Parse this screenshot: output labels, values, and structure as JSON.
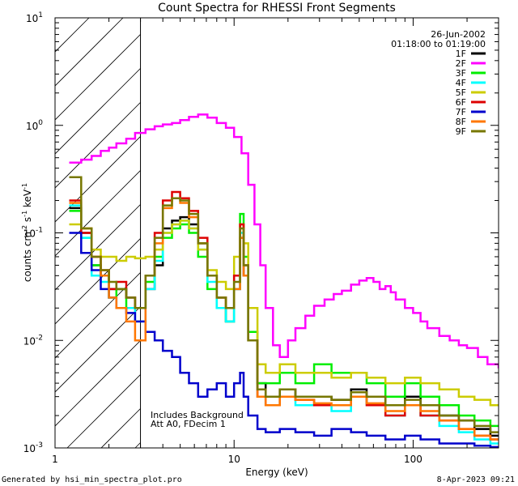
{
  "chart_data": {
    "type": "line",
    "title": "Count Spectra for RHESSI Front Segments",
    "xlabel": "Energy (keV)",
    "ylabel": "counts cm-2 s-1 keV-1",
    "xscale": "log",
    "yscale": "log",
    "xlim": [
      1,
      300
    ],
    "ylim": [
      0.001,
      10
    ],
    "x_tick_labels": [
      {
        "value": 1,
        "label": "1"
      },
      {
        "value": 10,
        "label": "10"
      },
      {
        "value": 100,
        "label": "100"
      }
    ],
    "y_tick_labels": [
      {
        "value": 0.001,
        "base": "10",
        "exp": "-3"
      },
      {
        "value": 0.01,
        "base": "10",
        "exp": "-2"
      },
      {
        "value": 0.1,
        "base": "10",
        "exp": "-1"
      },
      {
        "value": 1,
        "base": "10",
        "exp": "0"
      },
      {
        "value": 10,
        "base": "10",
        "exp": "1"
      }
    ],
    "shaded_region": {
      "from": 1,
      "to": 3
    },
    "date": "26-Jun-2002",
    "time_range": "01:18:00 to 01:19:00",
    "annotations": [
      "Includes Background",
      "Att A0, FDecim 1"
    ],
    "legend_position": "top-right",
    "series": [
      {
        "name": "1F",
        "color": "#000000",
        "x": [
          1.2,
          1.4,
          1.6,
          1.8,
          2.0,
          2.2,
          2.5,
          2.8,
          3.2,
          3.6,
          4.0,
          4.5,
          5.0,
          5.6,
          6.3,
          7.1,
          8.0,
          9.0,
          10.0,
          10.8,
          11.3,
          12.0,
          13.5,
          15,
          18,
          22,
          28,
          35,
          45,
          55,
          70,
          90,
          110,
          140,
          180,
          220,
          270
        ],
        "y": [
          0.17,
          0.1,
          0.05,
          0.04,
          0.03,
          0.03,
          0.025,
          0.02,
          0.03,
          0.05,
          0.11,
          0.13,
          0.14,
          0.12,
          0.08,
          0.04,
          0.025,
          0.015,
          0.03,
          0.09,
          0.04,
          0.01,
          0.004,
          0.003,
          0.0035,
          0.003,
          0.003,
          0.0028,
          0.0035,
          0.003,
          0.0025,
          0.003,
          0.0025,
          0.002,
          0.0018,
          0.0015,
          0.0013
        ]
      },
      {
        "name": "2F",
        "color": "#ff00ff",
        "x": [
          1.2,
          1.4,
          1.6,
          1.8,
          2.0,
          2.2,
          2.5,
          2.8,
          3.2,
          3.6,
          4.0,
          4.5,
          5.0,
          5.6,
          6.3,
          7.1,
          8.0,
          9.0,
          10.0,
          11.0,
          12.0,
          13.0,
          14.0,
          15.0,
          16.5,
          18,
          20,
          22,
          25,
          28,
          32,
          36,
          40,
          45,
          50,
          55,
          60,
          65,
          70,
          75,
          80,
          90,
          100,
          110,
          120,
          140,
          160,
          180,
          200,
          230,
          260,
          300
        ],
        "y": [
          0.45,
          0.48,
          0.52,
          0.58,
          0.62,
          0.68,
          0.75,
          0.85,
          0.92,
          0.98,
          1.02,
          1.05,
          1.12,
          1.2,
          1.26,
          1.18,
          1.05,
          0.95,
          0.78,
          0.55,
          0.28,
          0.12,
          0.05,
          0.02,
          0.009,
          0.007,
          0.01,
          0.013,
          0.017,
          0.021,
          0.024,
          0.027,
          0.029,
          0.033,
          0.036,
          0.038,
          0.035,
          0.03,
          0.032,
          0.028,
          0.024,
          0.02,
          0.018,
          0.015,
          0.013,
          0.011,
          0.01,
          0.009,
          0.0085,
          0.007,
          0.006,
          0.0055
        ]
      },
      {
        "name": "3F",
        "color": "#00ee00",
        "x": [
          1.2,
          1.4,
          1.6,
          1.8,
          2.0,
          2.2,
          2.5,
          2.8,
          3.2,
          3.6,
          4.0,
          4.5,
          5.0,
          5.6,
          6.3,
          7.1,
          8.0,
          9.0,
          10.0,
          10.8,
          11.3,
          12.0,
          13.5,
          15,
          18,
          22,
          28,
          35,
          45,
          55,
          70,
          90,
          110,
          140,
          180,
          220,
          270
        ],
        "y": [
          0.16,
          0.09,
          0.05,
          0.04,
          0.025,
          0.03,
          0.02,
          0.02,
          0.035,
          0.06,
          0.09,
          0.11,
          0.12,
          0.1,
          0.06,
          0.03,
          0.02,
          0.015,
          0.04,
          0.15,
          0.06,
          0.012,
          0.004,
          0.004,
          0.005,
          0.004,
          0.006,
          0.005,
          0.005,
          0.004,
          0.003,
          0.004,
          0.003,
          0.0025,
          0.002,
          0.0018,
          0.0016
        ]
      },
      {
        "name": "4F",
        "color": "#00ffff",
        "x": [
          1.2,
          1.4,
          1.6,
          1.8,
          2.0,
          2.2,
          2.5,
          2.8,
          3.2,
          3.6,
          4.0,
          4.5,
          5.0,
          5.6,
          6.3,
          7.1,
          8.0,
          9.0,
          10.0,
          10.8,
          11.3,
          12.0,
          13.5,
          15,
          18,
          22,
          28,
          35,
          45,
          55,
          70,
          90,
          110,
          140,
          180,
          220,
          270
        ],
        "y": [
          0.18,
          0.09,
          0.04,
          0.035,
          0.025,
          0.02,
          0.02,
          0.015,
          0.03,
          0.055,
          0.1,
          0.12,
          0.13,
          0.11,
          0.07,
          0.035,
          0.02,
          0.015,
          0.03,
          0.1,
          0.05,
          0.01,
          0.003,
          0.0025,
          0.003,
          0.0025,
          0.0025,
          0.0022,
          0.003,
          0.0025,
          0.002,
          0.0025,
          0.002,
          0.0016,
          0.0014,
          0.0012,
          0.0011
        ]
      },
      {
        "name": "5F",
        "color": "#cccc00",
        "x": [
          1.2,
          1.4,
          1.6,
          1.8,
          2.0,
          2.2,
          2.5,
          2.8,
          3.2,
          3.6,
          4.0,
          4.5,
          5.0,
          5.6,
          6.3,
          7.1,
          8.0,
          9.0,
          10.0,
          10.8,
          11.3,
          12.0,
          13.5,
          15,
          18,
          22,
          28,
          35,
          45,
          55,
          70,
          90,
          110,
          140,
          180,
          220,
          270
        ],
        "y": [
          0.12,
          0.11,
          0.07,
          0.06,
          0.06,
          0.055,
          0.06,
          0.058,
          0.06,
          0.07,
          0.1,
          0.12,
          0.13,
          0.11,
          0.07,
          0.045,
          0.035,
          0.03,
          0.06,
          0.12,
          0.08,
          0.02,
          0.006,
          0.005,
          0.006,
          0.005,
          0.005,
          0.0045,
          0.005,
          0.0045,
          0.004,
          0.0045,
          0.004,
          0.0035,
          0.003,
          0.0028,
          0.0025
        ]
      },
      {
        "name": "6F",
        "color": "#dd0000",
        "x": [
          1.2,
          1.4,
          1.6,
          1.8,
          2.0,
          2.2,
          2.5,
          2.8,
          3.2,
          3.6,
          4.0,
          4.5,
          5.0,
          5.6,
          6.3,
          7.1,
          8.0,
          9.0,
          10.0,
          10.8,
          11.3,
          12.0,
          13.5,
          15,
          18,
          22,
          28,
          35,
          45,
          55,
          70,
          90,
          110,
          140,
          180,
          220,
          270
        ],
        "y": [
          0.2,
          0.1,
          0.06,
          0.045,
          0.03,
          0.035,
          0.025,
          0.02,
          0.04,
          0.1,
          0.2,
          0.24,
          0.21,
          0.16,
          0.09,
          0.04,
          0.025,
          0.02,
          0.04,
          0.12,
          0.05,
          0.01,
          0.003,
          0.0025,
          0.003,
          0.0028,
          0.0025,
          0.0025,
          0.003,
          0.0025,
          0.002,
          0.0025,
          0.002,
          0.0018,
          0.0015,
          0.0013,
          0.0012
        ]
      },
      {
        "name": "7F",
        "color": "#0000cc",
        "x": [
          1.2,
          1.4,
          1.6,
          1.8,
          2.0,
          2.2,
          2.5,
          2.8,
          3.2,
          3.6,
          4.0,
          4.5,
          5.0,
          5.6,
          6.3,
          7.1,
          8.0,
          9.0,
          10.0,
          10.8,
          11.3,
          12.0,
          13.5,
          15,
          18,
          22,
          28,
          35,
          45,
          55,
          70,
          90,
          110,
          140,
          180,
          220,
          270
        ],
        "y": [
          0.1,
          0.065,
          0.045,
          0.03,
          0.025,
          0.02,
          0.018,
          0.015,
          0.012,
          0.01,
          0.008,
          0.007,
          0.005,
          0.004,
          0.003,
          0.0035,
          0.004,
          0.003,
          0.004,
          0.005,
          0.003,
          0.002,
          0.0015,
          0.0014,
          0.0015,
          0.0014,
          0.0013,
          0.0015,
          0.0014,
          0.0013,
          0.0012,
          0.0013,
          0.0012,
          0.0011,
          0.0011,
          0.00105,
          0.00102
        ]
      },
      {
        "name": "8F",
        "color": "#ff7700",
        "x": [
          1.2,
          1.4,
          1.6,
          1.8,
          2.0,
          2.2,
          2.5,
          2.8,
          3.2,
          3.6,
          4.0,
          4.5,
          5.0,
          5.6,
          6.3,
          7.1,
          8.0,
          9.0,
          10.0,
          10.8,
          11.3,
          12.0,
          13.5,
          15,
          18,
          22,
          28,
          35,
          45,
          55,
          70,
          90,
          110,
          140,
          180,
          220,
          270
        ],
        "y": [
          0.19,
          0.11,
          0.06,
          0.04,
          0.025,
          0.02,
          0.015,
          0.01,
          0.04,
          0.08,
          0.17,
          0.21,
          0.19,
          0.14,
          0.08,
          0.04,
          0.025,
          0.02,
          0.03,
          0.09,
          0.04,
          0.01,
          0.003,
          0.0025,
          0.003,
          0.0028,
          0.0026,
          0.0025,
          0.003,
          0.0026,
          0.0022,
          0.0025,
          0.0022,
          0.0018,
          0.0015,
          0.0013,
          0.0012
        ]
      },
      {
        "name": "9F",
        "color": "#777700",
        "x": [
          1.2,
          1.4,
          1.6,
          1.8,
          2.0,
          2.2,
          2.5,
          2.8,
          3.2,
          3.6,
          4.0,
          4.5,
          5.0,
          5.6,
          6.3,
          7.1,
          8.0,
          9.0,
          10.0,
          10.8,
          11.3,
          12.0,
          13.5,
          15,
          18,
          22,
          28,
          35,
          45,
          55,
          70,
          90,
          110,
          140,
          180,
          220,
          270
        ],
        "y": [
          0.33,
          0.11,
          0.06,
          0.045,
          0.035,
          0.03,
          0.025,
          0.02,
          0.04,
          0.09,
          0.18,
          0.21,
          0.2,
          0.15,
          0.08,
          0.04,
          0.025,
          0.02,
          0.035,
          0.11,
          0.05,
          0.01,
          0.0035,
          0.003,
          0.0035,
          0.003,
          0.003,
          0.0028,
          0.0033,
          0.003,
          0.0025,
          0.0028,
          0.0025,
          0.002,
          0.0018,
          0.0016,
          0.0014
        ]
      }
    ]
  },
  "footer": {
    "generator": "Generated by hsi_min_spectra_plot.pro",
    "timestamp": "8-Apr-2023 09:21"
  }
}
